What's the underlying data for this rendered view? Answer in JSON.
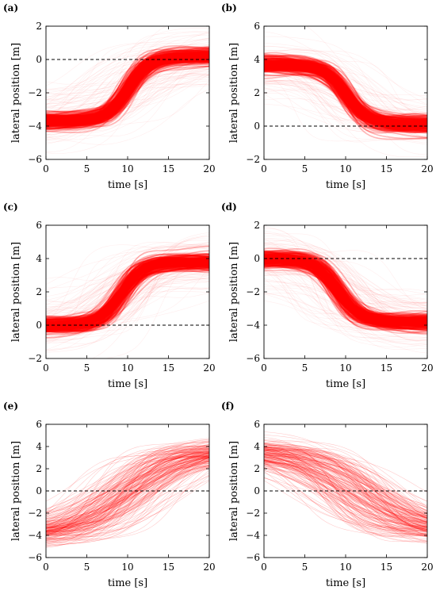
{
  "colors": {
    "trajectory": "#ff0000",
    "reference": "#000000"
  },
  "chart_data": [
    {
      "id": "a",
      "label": "(a)",
      "type": "line",
      "xlabel": "time [s]",
      "ylabel": "lateral position [m]",
      "xlim": [
        0,
        20
      ],
      "ylim": [
        -6,
        2
      ],
      "xticks": [
        0,
        5,
        10,
        15,
        20
      ],
      "yticks": [
        -6,
        -4,
        -2,
        0,
        2
      ],
      "reference_line_y": 0,
      "reference_style": "dashed",
      "series": [
        {
          "start_y": -3.7,
          "end_y": 0.2,
          "transition_center_s": 10.0,
          "transition_width_s": 1.3,
          "density": "dense"
        }
      ]
    },
    {
      "id": "b",
      "label": "(b)",
      "type": "line",
      "xlabel": "time [s]",
      "ylabel": "lateral position [m]",
      "xlim": [
        0,
        20
      ],
      "ylim": [
        -2,
        6
      ],
      "xticks": [
        0,
        5,
        10,
        15,
        20
      ],
      "yticks": [
        -2,
        0,
        2,
        4,
        6
      ],
      "reference_line_y": 0,
      "reference_style": "dashed",
      "series": [
        {
          "start_y": 3.7,
          "end_y": 0.1,
          "transition_center_s": 10.0,
          "transition_width_s": 1.3,
          "density": "dense"
        }
      ]
    },
    {
      "id": "c",
      "label": "(c)",
      "type": "line",
      "xlabel": "time [s]",
      "ylabel": "lateral position [m]",
      "xlim": [
        0,
        20
      ],
      "ylim": [
        -2,
        6
      ],
      "xticks": [
        0,
        5,
        10,
        15,
        20
      ],
      "yticks": [
        -2,
        0,
        2,
        4,
        6
      ],
      "reference_line_y": 0,
      "reference_style": "dashed",
      "series": [
        {
          "start_y": 0.0,
          "end_y": 3.8,
          "transition_center_s": 9.2,
          "transition_width_s": 1.3,
          "density": "dense"
        }
      ]
    },
    {
      "id": "d",
      "label": "(d)",
      "type": "line",
      "xlabel": "time [s]",
      "ylabel": "lateral position [m]",
      "xlim": [
        0,
        20
      ],
      "ylim": [
        -6,
        2
      ],
      "xticks": [
        0,
        5,
        10,
        15,
        20
      ],
      "yticks": [
        -6,
        -4,
        -2,
        0,
        2
      ],
      "reference_line_y": 0,
      "reference_style": "dashed",
      "series": [
        {
          "start_y": 0.0,
          "end_y": -3.8,
          "transition_center_s": 9.0,
          "transition_width_s": 1.3,
          "density": "dense"
        }
      ]
    },
    {
      "id": "e",
      "label": "(e)",
      "type": "line",
      "xlabel": "time [s]",
      "ylabel": "lateral position [m]",
      "xlim": [
        0,
        20
      ],
      "ylim": [
        -6,
        6
      ],
      "xticks": [
        0,
        5,
        10,
        15,
        20
      ],
      "yticks": [
        -6,
        -4,
        -2,
        0,
        2,
        4,
        6
      ],
      "reference_line_y": 0,
      "reference_style": "dashed",
      "series": [
        {
          "start_y": -4.0,
          "end_y": 3.8,
          "transition_center_s": 10.0,
          "transition_width_s": 2.2,
          "density": "sparse"
        }
      ]
    },
    {
      "id": "f",
      "label": "(f)",
      "type": "line",
      "xlabel": "time [s]",
      "ylabel": "lateral position [m]",
      "xlim": [
        0,
        20
      ],
      "ylim": [
        -6,
        6
      ],
      "xticks": [
        0,
        5,
        10,
        15,
        20
      ],
      "yticks": [
        -6,
        -4,
        -2,
        0,
        2,
        4,
        6
      ],
      "reference_line_y": 0,
      "reference_style": "dashed",
      "series": [
        {
          "start_y": 3.7,
          "end_y": -3.8,
          "transition_center_s": 11.0,
          "transition_width_s": 2.2,
          "density": "sparse"
        }
      ]
    }
  ]
}
